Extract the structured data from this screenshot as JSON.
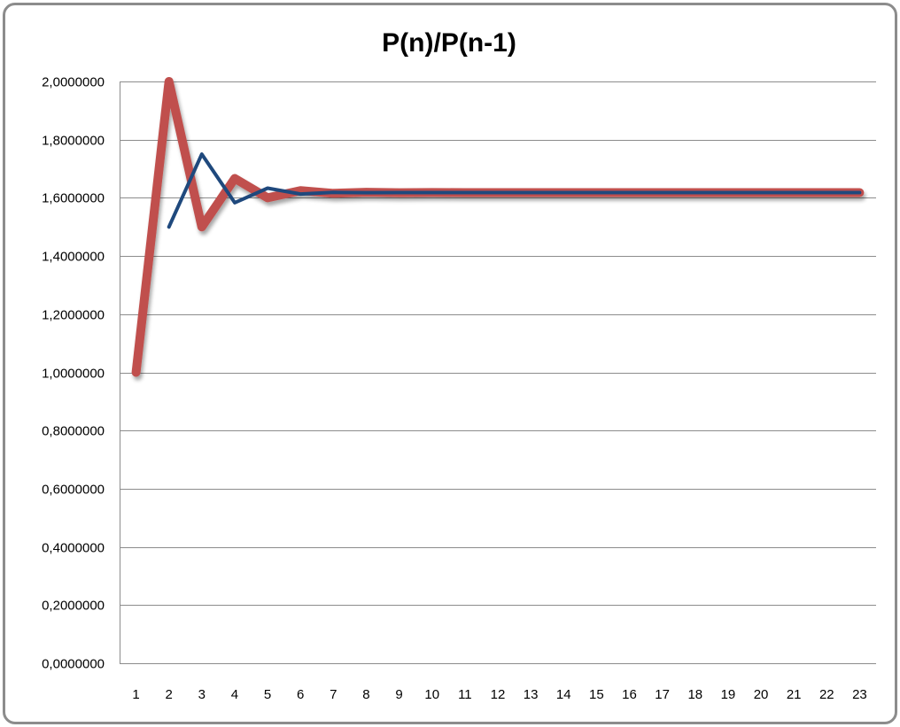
{
  "chart_data": {
    "type": "line",
    "title": "P(n)/P(n-1)",
    "xlabel": "",
    "ylabel": "",
    "categories": [
      "1",
      "2",
      "3",
      "4",
      "5",
      "6",
      "7",
      "8",
      "9",
      "10",
      "11",
      "12",
      "13",
      "14",
      "15",
      "16",
      "17",
      "18",
      "19",
      "20",
      "21",
      "22",
      "23"
    ],
    "ylim": [
      0,
      2
    ],
    "yticks": [
      "0,0000000",
      "0,2000000",
      "0,4000000",
      "0,6000000",
      "0,8000000",
      "1,0000000",
      "1,2000000",
      "1,4000000",
      "1,6000000",
      "1,8000000",
      "2,0000000"
    ],
    "grid": true,
    "legend": "none",
    "series": [
      {
        "color": "#c0504d",
        "width": 10,
        "shadow": true,
        "values": [
          1.0,
          2.0,
          1.5,
          1.6666667,
          1.6,
          1.625,
          1.6153846,
          1.6190476,
          1.6176471,
          1.6181818,
          1.6179775,
          1.6180556,
          1.6180258,
          1.6180371,
          1.6180328,
          1.6180344,
          1.6180338,
          1.618034,
          1.618034,
          1.618034,
          1.618034,
          1.618034,
          1.618034
        ]
      },
      {
        "color": "#1f497d",
        "width": 4,
        "shadow": false,
        "values": [
          null,
          1.5,
          1.75,
          1.5833333,
          1.6333333,
          1.6130952,
          1.6186441,
          1.6175214,
          1.6179144,
          1.6180039,
          1.6180338,
          1.618034,
          1.618034,
          1.618034,
          1.618034,
          1.618034,
          1.618034,
          1.618034,
          1.618034,
          1.618034,
          1.618034,
          1.618034,
          1.618034
        ]
      }
    ]
  }
}
